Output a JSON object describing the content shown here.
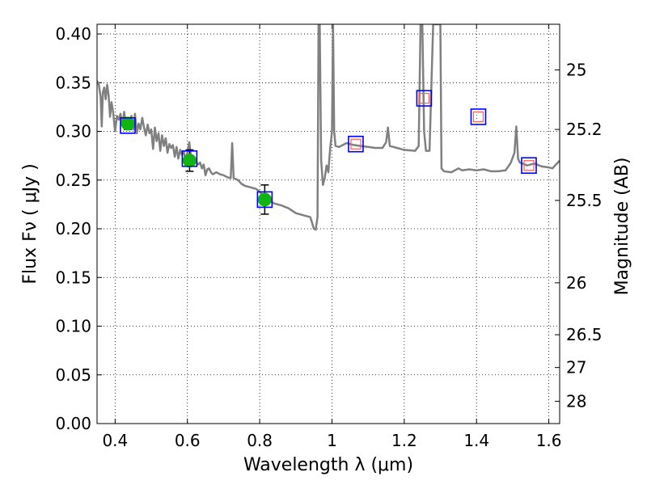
{
  "chart_data": {
    "type": "line",
    "xlabel": "Wavelength  λ (μm)",
    "ylabel": "Flux  Fν  ( μJy )",
    "y2label": "Magnitude (AB)",
    "xlim": [
      0.35,
      1.63
    ],
    "ylim": [
      0.0,
      0.41
    ],
    "grid": true,
    "x_ticks": [
      {
        "v": 0.4,
        "label": "0.4"
      },
      {
        "v": 0.6,
        "label": "0.6"
      },
      {
        "v": 0.8,
        "label": "0.8"
      },
      {
        "v": 1.0,
        "label": "1"
      },
      {
        "v": 1.2,
        "label": "1.2"
      },
      {
        "v": 1.4,
        "label": "1.4"
      },
      {
        "v": 1.6,
        "label": "1.6"
      }
    ],
    "y_ticks": [
      {
        "v": 0.0,
        "label": "0.00"
      },
      {
        "v": 0.05,
        "label": "0.05"
      },
      {
        "v": 0.1,
        "label": "0.10"
      },
      {
        "v": 0.15,
        "label": "0.15"
      },
      {
        "v": 0.2,
        "label": "0.20"
      },
      {
        "v": 0.25,
        "label": "0.25"
      },
      {
        "v": 0.3,
        "label": "0.30"
      },
      {
        "v": 0.35,
        "label": "0.35"
      },
      {
        "v": 0.4,
        "label": "0.40"
      }
    ],
    "y2_ticks": [
      {
        "mag": 25,
        "label": "25"
      },
      {
        "mag": 25.2,
        "label": "25.2"
      },
      {
        "mag": 25.5,
        "label": "25.5"
      },
      {
        "mag": 26,
        "label": "26"
      },
      {
        "mag": 26.5,
        "label": "26.5"
      },
      {
        "mag": 27,
        "label": "27"
      },
      {
        "mag": 28,
        "label": "28"
      }
    ],
    "spectrum": {
      "color": "#808080",
      "points": [
        [
          0.35,
          0.352
        ],
        [
          0.355,
          0.348
        ],
        [
          0.36,
          0.335
        ],
        [
          0.363,
          0.305
        ],
        [
          0.366,
          0.34
        ],
        [
          0.37,
          0.345
        ],
        [
          0.374,
          0.333
        ],
        [
          0.378,
          0.348
        ],
        [
          0.382,
          0.337
        ],
        [
          0.386,
          0.315
        ],
        [
          0.39,
          0.33
        ],
        [
          0.395,
          0.318
        ],
        [
          0.4,
          0.3
        ],
        [
          0.405,
          0.316
        ],
        [
          0.41,
          0.312
        ],
        [
          0.415,
          0.318
        ],
        [
          0.42,
          0.306
        ],
        [
          0.425,
          0.32
        ],
        [
          0.43,
          0.305
        ],
        [
          0.435,
          0.312
        ],
        [
          0.44,
          0.305
        ],
        [
          0.445,
          0.316
        ],
        [
          0.45,
          0.302
        ],
        [
          0.455,
          0.318
        ],
        [
          0.46,
          0.298
        ],
        [
          0.465,
          0.308
        ],
        [
          0.47,
          0.302
        ],
        [
          0.475,
          0.314
        ],
        [
          0.48,
          0.304
        ],
        [
          0.485,
          0.296
        ],
        [
          0.49,
          0.307
        ],
        [
          0.495,
          0.298
        ],
        [
          0.5,
          0.302
        ],
        [
          0.505,
          0.282
        ],
        [
          0.51,
          0.304
        ],
        [
          0.515,
          0.29
        ],
        [
          0.52,
          0.298
        ],
        [
          0.525,
          0.28
        ],
        [
          0.53,
          0.296
        ],
        [
          0.535,
          0.285
        ],
        [
          0.54,
          0.293
        ],
        [
          0.545,
          0.278
        ],
        [
          0.55,
          0.287
        ],
        [
          0.555,
          0.283
        ],
        [
          0.56,
          0.286
        ],
        [
          0.565,
          0.274
        ],
        [
          0.57,
          0.284
        ],
        [
          0.575,
          0.272
        ],
        [
          0.58,
          0.281
        ],
        [
          0.585,
          0.276
        ],
        [
          0.59,
          0.279
        ],
        [
          0.595,
          0.27
        ],
        [
          0.6,
          0.278
        ],
        [
          0.605,
          0.289
        ],
        [
          0.61,
          0.274
        ],
        [
          0.615,
          0.27
        ],
        [
          0.62,
          0.272
        ],
        [
          0.625,
          0.268
        ],
        [
          0.63,
          0.266
        ],
        [
          0.635,
          0.268
        ],
        [
          0.64,
          0.262
        ],
        [
          0.645,
          0.266
        ],
        [
          0.65,
          0.255
        ],
        [
          0.655,
          0.261
        ],
        [
          0.66,
          0.262
        ],
        [
          0.665,
          0.258
        ],
        [
          0.67,
          0.256
        ],
        [
          0.68,
          0.258
        ],
        [
          0.69,
          0.256
        ],
        [
          0.7,
          0.255
        ],
        [
          0.71,
          0.253
        ],
        [
          0.72,
          0.252
        ],
        [
          0.724,
          0.288
        ],
        [
          0.728,
          0.252
        ],
        [
          0.74,
          0.25
        ],
        [
          0.75,
          0.246
        ],
        [
          0.76,
          0.244
        ],
        [
          0.77,
          0.243
        ],
        [
          0.78,
          0.242
        ],
        [
          0.79,
          0.241
        ],
        [
          0.8,
          0.238
        ],
        [
          0.82,
          0.23
        ],
        [
          0.84,
          0.226
        ],
        [
          0.86,
          0.224
        ],
        [
          0.88,
          0.221
        ],
        [
          0.9,
          0.216
        ],
        [
          0.92,
          0.214
        ],
        [
          0.93,
          0.213
        ],
        [
          0.94,
          0.212
        ],
        [
          0.945,
          0.206
        ],
        [
          0.95,
          0.2
        ],
        [
          0.955,
          0.199
        ],
        [
          0.96,
          0.212
        ],
        [
          0.963,
          0.41
        ],
        [
          0.966,
          0.41
        ],
        [
          0.97,
          0.27
        ],
        [
          0.975,
          0.245
        ],
        [
          0.98,
          0.252
        ],
        [
          0.985,
          0.265
        ],
        [
          0.99,
          0.258
        ],
        [
          0.995,
          0.282
        ],
        [
          1.0,
          0.3
        ],
        [
          1.003,
          0.41
        ],
        [
          1.006,
          0.3
        ],
        [
          1.01,
          0.285
        ],
        [
          1.02,
          0.284
        ],
        [
          1.04,
          0.288
        ],
        [
          1.06,
          0.286
        ],
        [
          1.08,
          0.285
        ],
        [
          1.1,
          0.284
        ],
        [
          1.12,
          0.283
        ],
        [
          1.14,
          0.283
        ],
        [
          1.15,
          0.289
        ],
        [
          1.155,
          0.304
        ],
        [
          1.16,
          0.285
        ],
        [
          1.18,
          0.283
        ],
        [
          1.2,
          0.281
        ],
        [
          1.23,
          0.28
        ],
        [
          1.24,
          0.285
        ],
        [
          1.245,
          0.41
        ],
        [
          1.25,
          0.41
        ],
        [
          1.255,
          0.3
        ],
        [
          1.26,
          0.28
        ],
        [
          1.27,
          0.28
        ],
        [
          1.28,
          0.41
        ],
        [
          1.3,
          0.41
        ],
        [
          1.303,
          0.262
        ],
        [
          1.31,
          0.259
        ],
        [
          1.33,
          0.258
        ],
        [
          1.35,
          0.262
        ],
        [
          1.36,
          0.26
        ],
        [
          1.38,
          0.261
        ],
        [
          1.4,
          0.26
        ],
        [
          1.42,
          0.261
        ],
        [
          1.44,
          0.259
        ],
        [
          1.46,
          0.259
        ],
        [
          1.48,
          0.26
        ],
        [
          1.49,
          0.265
        ],
        [
          1.495,
          0.268
        ],
        [
          1.505,
          0.278
        ],
        [
          1.51,
          0.305
        ],
        [
          1.515,
          0.272
        ],
        [
          1.52,
          0.268
        ],
        [
          1.54,
          0.265
        ],
        [
          1.56,
          0.267
        ],
        [
          1.58,
          0.264
        ],
        [
          1.6,
          0.263
        ],
        [
          1.61,
          0.262
        ],
        [
          1.62,
          0.266
        ],
        [
          1.63,
          0.27
        ]
      ]
    },
    "observed": {
      "color": "#11b511",
      "points": [
        {
          "x": 0.435,
          "y": 0.308,
          "err": 0.006
        },
        {
          "x": 0.606,
          "y": 0.27,
          "err": 0.011
        },
        {
          "x": 0.814,
          "y": 0.23,
          "err": 0.015
        }
      ]
    },
    "model_boxes": {
      "color": "#0000ff",
      "points": [
        [
          0.435,
          0.306
        ],
        [
          0.606,
          0.272
        ],
        [
          0.814,
          0.23
        ],
        [
          1.066,
          0.287
        ],
        [
          1.255,
          0.334
        ],
        [
          1.405,
          0.315
        ],
        [
          1.545,
          0.265
        ]
      ]
    },
    "limits": {
      "color": "#ff5a5a",
      "points": [
        [
          1.066,
          0.287
        ],
        [
          1.255,
          0.334
        ],
        [
          1.405,
          0.315
        ],
        [
          1.545,
          0.265
        ]
      ]
    }
  }
}
